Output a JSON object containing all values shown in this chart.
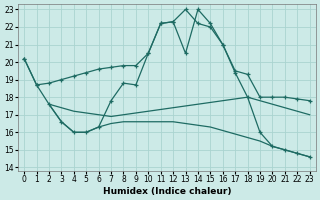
{
  "xlabel": "Humidex (Indice chaleur)",
  "background_color": "#cceae7",
  "grid_color": "#aad4d0",
  "line_color": "#1e6b63",
  "xlim": [
    -0.5,
    23.5
  ],
  "ylim": [
    13.8,
    23.3
  ],
  "x_ticks": [
    0,
    1,
    2,
    3,
    4,
    5,
    6,
    7,
    8,
    9,
    10,
    11,
    12,
    13,
    14,
    15,
    16,
    17,
    18,
    19,
    20,
    21,
    22,
    23
  ],
  "y_ticks": [
    14,
    15,
    16,
    17,
    18,
    19,
    20,
    21,
    22,
    23
  ],
  "line1_x": [
    0,
    1,
    2,
    3,
    4,
    5,
    6,
    7,
    8,
    9,
    10,
    11,
    12,
    13,
    14,
    15,
    16,
    17,
    18,
    19,
    20,
    21,
    22,
    23
  ],
  "line1_y": [
    20.2,
    18.7,
    18.8,
    19.0,
    19.2,
    19.4,
    19.6,
    19.7,
    19.8,
    19.8,
    20.5,
    22.2,
    22.3,
    20.5,
    23.0,
    22.2,
    21.0,
    19.5,
    19.3,
    18.0,
    18.0,
    18.0,
    17.9,
    17.8
  ],
  "line2_x": [
    2,
    3,
    4,
    5,
    6,
    7,
    8,
    9,
    10,
    11,
    12,
    13,
    14,
    15,
    16,
    17,
    18,
    19,
    20,
    21,
    22,
    23
  ],
  "line2_y": [
    17.6,
    17.4,
    17.2,
    17.1,
    17.0,
    16.9,
    17.0,
    17.1,
    17.2,
    17.3,
    17.4,
    17.5,
    17.6,
    17.7,
    17.8,
    17.9,
    18.0,
    17.8,
    17.6,
    17.4,
    17.2,
    17.0
  ],
  "line3_x": [
    0,
    1,
    2,
    3,
    4,
    5,
    6,
    7,
    8,
    9,
    10,
    11,
    12,
    13,
    14,
    15,
    16,
    17,
    18,
    19,
    20,
    21,
    22,
    23
  ],
  "line3_y": [
    20.2,
    18.7,
    17.6,
    16.6,
    16.0,
    16.0,
    16.3,
    17.8,
    18.8,
    18.7,
    20.5,
    22.2,
    22.3,
    23.0,
    22.2,
    22.0,
    21.0,
    19.4,
    18.0,
    16.0,
    15.2,
    15.0,
    14.8,
    14.6
  ],
  "line4_x": [
    2,
    3,
    4,
    5,
    6,
    7,
    8,
    9,
    10,
    11,
    12,
    13,
    14,
    15,
    16,
    17,
    18,
    19,
    20,
    21,
    22,
    23
  ],
  "line4_y": [
    17.6,
    16.6,
    16.0,
    16.0,
    16.3,
    16.5,
    16.6,
    16.6,
    16.6,
    16.6,
    16.6,
    16.5,
    16.4,
    16.3,
    16.1,
    15.9,
    15.7,
    15.5,
    15.2,
    15.0,
    14.8,
    14.6
  ]
}
